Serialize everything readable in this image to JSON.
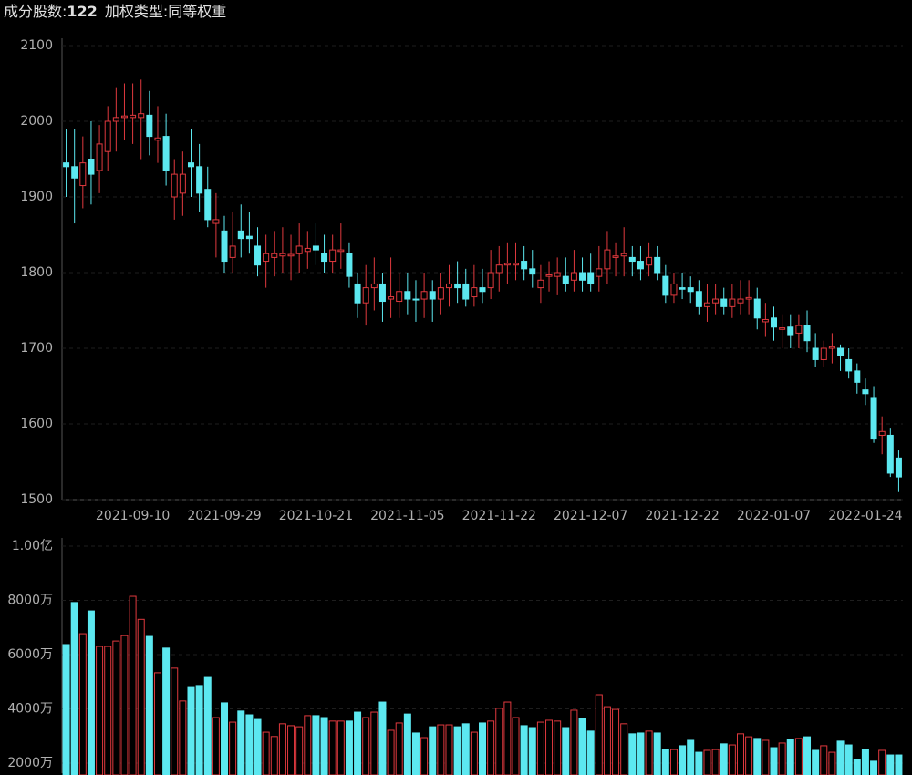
{
  "header": {
    "count_label": "成分股数:",
    "count": 122,
    "weight_label": "加权类型:同等权重"
  },
  "chart_data": {
    "type": "candlestick",
    "up_color": "#e0393e",
    "down_color": "#5ce8f0",
    "grid": true,
    "categories": [
      null,
      null,
      null,
      null,
      null,
      null,
      null,
      null,
      "2021-09-10",
      null,
      null,
      null,
      null,
      null,
      null,
      null,
      null,
      null,
      null,
      "2021-09-29",
      null,
      null,
      null,
      null,
      null,
      null,
      null,
      null,
      null,
      null,
      "2021-10-21",
      null,
      null,
      null,
      null,
      null,
      null,
      null,
      null,
      null,
      null,
      "2021-11-05",
      null,
      null,
      null,
      null,
      null,
      null,
      null,
      null,
      null,
      null,
      "2021-11-22",
      null,
      null,
      null,
      null,
      null,
      null,
      null,
      null,
      null,
      null,
      "2021-12-07",
      null,
      null,
      null,
      null,
      null,
      null,
      null,
      null,
      null,
      null,
      "2021-12-22",
      null,
      null,
      null,
      null,
      null,
      null,
      null,
      null,
      null,
      null,
      "2022-01-07",
      null,
      null,
      null,
      null,
      null,
      null,
      null,
      null,
      null,
      null,
      "2022-01-24",
      null,
      null,
      null,
      null
    ],
    "open": [
      1945,
      1940,
      1915,
      1950,
      1935,
      1960,
      2000,
      2005,
      2005,
      2005,
      2008,
      1975,
      1980,
      1900,
      1905,
      1945,
      1940,
      1910,
      1865,
      1855,
      1820,
      1855,
      1848,
      1835,
      1815,
      1820,
      1822,
      1822,
      1825,
      1828,
      1835,
      1825,
      1815,
      1828,
      1825,
      1785,
      1760,
      1780,
      1785,
      1765,
      1762,
      1775,
      1765,
      1765,
      1775,
      1765,
      1780,
      1785,
      1785,
      1768,
      1780,
      1780,
      1800,
      1810,
      1810,
      1815,
      1805,
      1780,
      1795,
      1795,
      1795,
      1790,
      1800,
      1800,
      1795,
      1805,
      1820,
      1822,
      1820,
      1815,
      1810,
      1820,
      1795,
      1770,
      1780,
      1780,
      1775,
      1755,
      1760,
      1765,
      1755,
      1760,
      1765,
      1765,
      1735,
      1740,
      1725,
      1728,
      1720,
      1730,
      1700,
      1685,
      1700,
      1700,
      1685,
      1670,
      1645,
      1635,
      1585,
      1585,
      1555
    ],
    "high": [
      1990,
      1990,
      1980,
      2000,
      1995,
      2020,
      2045,
      2050,
      2050,
      2055,
      2040,
      2020,
      2010,
      1950,
      1960,
      1990,
      1970,
      1940,
      1905,
      1875,
      1880,
      1890,
      1880,
      1860,
      1850,
      1855,
      1860,
      1850,
      1865,
      1855,
      1865,
      1850,
      1850,
      1865,
      1840,
      1800,
      1810,
      1820,
      1800,
      1820,
      1800,
      1800,
      1790,
      1800,
      1790,
      1800,
      1810,
      1815,
      1805,
      1810,
      1805,
      1830,
      1835,
      1840,
      1840,
      1835,
      1830,
      1810,
      1815,
      1820,
      1820,
      1830,
      1820,
      1825,
      1835,
      1855,
      1840,
      1860,
      1835,
      1835,
      1840,
      1835,
      1810,
      1800,
      1800,
      1795,
      1790,
      1785,
      1785,
      1780,
      1785,
      1790,
      1790,
      1780,
      1760,
      1755,
      1745,
      1745,
      1745,
      1750,
      1720,
      1710,
      1720,
      1705,
      1700,
      1680,
      1660,
      1650,
      1610,
      1595,
      1565
    ],
    "low": [
      1900,
      1865,
      1885,
      1890,
      1905,
      1935,
      1960,
      1975,
      1970,
      1950,
      1955,
      1945,
      1915,
      1870,
      1875,
      1900,
      1880,
      1860,
      1820,
      1800,
      1800,
      1820,
      1825,
      1795,
      1780,
      1795,
      1800,
      1790,
      1800,
      1805,
      1810,
      1800,
      1800,
      1805,
      1780,
      1740,
      1730,
      1750,
      1735,
      1740,
      1740,
      1745,
      1735,
      1740,
      1735,
      1745,
      1755,
      1760,
      1755,
      1755,
      1760,
      1765,
      1775,
      1785,
      1790,
      1790,
      1780,
      1760,
      1775,
      1770,
      1775,
      1775,
      1775,
      1775,
      1775,
      1785,
      1795,
      1795,
      1795,
      1790,
      1795,
      1790,
      1760,
      1760,
      1765,
      1760,
      1745,
      1735,
      1745,
      1745,
      1740,
      1745,
      1745,
      1725,
      1715,
      1710,
      1700,
      1700,
      1700,
      1695,
      1675,
      1675,
      1680,
      1670,
      1660,
      1640,
      1625,
      1575,
      1560,
      1530,
      1510
    ],
    "close": [
      1940,
      1925,
      1945,
      1930,
      1970,
      2000,
      2005,
      2007,
      2008,
      2010,
      1980,
      1978,
      1935,
      1930,
      1930,
      1940,
      1905,
      1870,
      1870,
      1815,
      1835,
      1845,
      1845,
      1810,
      1825,
      1825,
      1825,
      1824,
      1835,
      1832,
      1830,
      1815,
      1830,
      1830,
      1795,
      1760,
      1780,
      1785,
      1762,
      1768,
      1775,
      1765,
      1765,
      1775,
      1765,
      1780,
      1785,
      1780,
      1765,
      1780,
      1775,
      1800,
      1810,
      1812,
      1812,
      1805,
      1798,
      1790,
      1797,
      1800,
      1785,
      1800,
      1790,
      1785,
      1805,
      1830,
      1822,
      1825,
      1815,
      1805,
      1820,
      1800,
      1770,
      1785,
      1778,
      1775,
      1755,
      1760,
      1765,
      1755,
      1765,
      1765,
      1767,
      1740,
      1738,
      1728,
      1727,
      1718,
      1730,
      1710,
      1685,
      1700,
      1702,
      1690,
      1670,
      1655,
      1640,
      1580,
      1590,
      1535,
      1530
    ],
    "ylim": [
      1500,
      2100
    ],
    "yticks": [
      1500,
      1600,
      1700,
      1800,
      1900,
      2000,
      2100
    ],
    "volume": {
      "values": [
        6370,
        7920,
        6770,
        7610,
        6300,
        6300,
        6500,
        6700,
        8150,
        7300,
        6670,
        5330,
        6240,
        5500,
        4290,
        4820,
        4860,
        5190,
        3680,
        4220,
        3510,
        3920,
        3780,
        3610,
        3140,
        2980,
        3450,
        3380,
        3340,
        3750,
        3750,
        3680,
        3550,
        3550,
        3550,
        3880,
        3680,
        3880,
        4250,
        3210,
        3480,
        3810,
        3110,
        2940,
        3340,
        3410,
        3410,
        3340,
        3450,
        3140,
        3480,
        3550,
        4020,
        4250,
        3680,
        3380,
        3310,
        3510,
        3580,
        3550,
        3310,
        3950,
        3650,
        3180,
        4520,
        4080,
        3980,
        3450,
        3080,
        3110,
        3180,
        3110,
        2500,
        2500,
        2640,
        2840,
        2400,
        2470,
        2500,
        2710,
        2670,
        3080,
        2970,
        2910,
        2840,
        2570,
        2740,
        2870,
        2910,
        2970,
        2470,
        2640,
        2400,
        2810,
        2670,
        2130,
        2500,
        2070,
        2470,
        2300,
        2300
      ],
      "ylim": [
        1730,
        10000
      ],
      "yticks": [
        {
          "value": 2000,
          "label": "2000万"
        },
        {
          "value": 4000,
          "label": "4000万"
        },
        {
          "value": 6000,
          "label": "6000万"
        },
        {
          "value": 8000,
          "label": "8000万"
        },
        {
          "value": 10000,
          "label": "1.00亿"
        }
      ]
    }
  }
}
